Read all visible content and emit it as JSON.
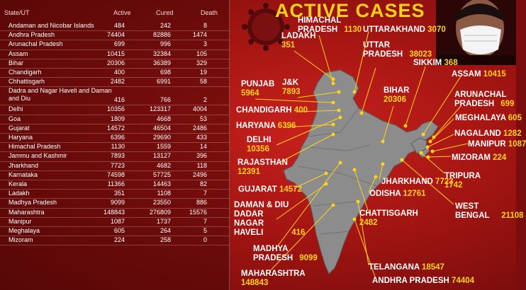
{
  "title": "ACTIVE CASES",
  "table": {
    "headers": {
      "state": "State/UT",
      "active": "Active",
      "cured": "Cured",
      "death": "Death"
    },
    "rows": [
      {
        "state": "Andaman and Nicobar Islands",
        "active": "484",
        "cured": "242",
        "death": "8"
      },
      {
        "state": "Andhra Pradesh",
        "active": "74404",
        "cured": "82886",
        "death": "1474"
      },
      {
        "state": "Arunachal Pradesh",
        "active": "699",
        "cured": "996",
        "death": "3"
      },
      {
        "state": "Assam",
        "active": "10415",
        "cured": "32384",
        "death": "105"
      },
      {
        "state": "Bihar",
        "active": "20306",
        "cured": "36389",
        "death": "329"
      },
      {
        "state": "Chandigarh",
        "active": "400",
        "cured": "698",
        "death": "19"
      },
      {
        "state": "Chhattisgarh",
        "active": "2482",
        "cured": "6991",
        "death": "58"
      },
      {
        "state": "Dadra and Nagar Haveli and Daman and Diu",
        "active": "416",
        "cured": "766",
        "death": "2"
      },
      {
        "state": "Delhi",
        "active": "10356",
        "cured": "123317",
        "death": "4004"
      },
      {
        "state": "Goa",
        "active": "1809",
        "cured": "4668",
        "death": "53"
      },
      {
        "state": "Gujarat",
        "active": "14572",
        "cured": "46504",
        "death": "2486"
      },
      {
        "state": "Haryana",
        "active": "6396",
        "cured": "29690",
        "death": "433"
      },
      {
        "state": "Himachal Pradesh",
        "active": "1130",
        "cured": "1559",
        "death": "14"
      },
      {
        "state": "Jammu and Kashmir",
        "active": "7893",
        "cured": "13127",
        "death": "396"
      },
      {
        "state": "Jharkhand",
        "active": "7723",
        "cured": "4682",
        "death": "118"
      },
      {
        "state": "Karnataka",
        "active": "74598",
        "cured": "57725",
        "death": "2496"
      },
      {
        "state": "Kerala",
        "active": "11366",
        "cured": "14463",
        "death": "82"
      },
      {
        "state": "Ladakh",
        "active": "351",
        "cured": "1108",
        "death": "7"
      },
      {
        "state": "Madhya Pradesh",
        "active": "9099",
        "cured": "23550",
        "death": "886"
      },
      {
        "state": "Maharashtra",
        "active": "148843",
        "cured": "276809",
        "death": "15576"
      },
      {
        "state": "Manipur",
        "active": "1087",
        "cured": "1737",
        "death": "7"
      },
      {
        "state": "Meghalaya",
        "active": "605",
        "cured": "264",
        "death": "5"
      },
      {
        "state": "Mizoram",
        "active": "224",
        "cured": "258",
        "death": "0"
      }
    ]
  },
  "map_labels": [
    {
      "name": "HIMACHAL PRADESH",
      "value": "1130"
    },
    {
      "name": "UTTARAKHAND",
      "value": "3070"
    },
    {
      "name": "LADAKH",
      "value": "351"
    },
    {
      "name": "UTTAR PRADESH",
      "value": "38023"
    },
    {
      "name": "SIKKIM",
      "value": "368"
    },
    {
      "name": "ASSAM",
      "value": "10415"
    },
    {
      "name": "PUNJAB",
      "value": "5964"
    },
    {
      "name": "J&K",
      "value": "7893"
    },
    {
      "name": "BIHAR",
      "value": "20306"
    },
    {
      "name": "ARUNACHAL PRADESH",
      "value": "699"
    },
    {
      "name": "CHANDIGARH",
      "value": "400"
    },
    {
      "name": "MEGHALAYA",
      "value": "605"
    },
    {
      "name": "HARYANA",
      "value": "6396"
    },
    {
      "name": "NAGALAND",
      "value": "1282"
    },
    {
      "name": "DELHI",
      "value": "10356"
    },
    {
      "name": "MANIPUR",
      "value": "1087"
    },
    {
      "name": "MIZORAM",
      "value": "224"
    },
    {
      "name": "RAJASTHAN",
      "value": "12391"
    },
    {
      "name": "TRIPURA",
      "value": "1742"
    },
    {
      "name": "JHARKHAND",
      "value": "7723"
    },
    {
      "name": "GUJARAT",
      "value": "14572"
    },
    {
      "name": "ODISHA",
      "value": "12761"
    },
    {
      "name": "WEST BENGAL",
      "value": "21108"
    },
    {
      "name": "DAMAN & DIU DADAR NAGAR HAVELI",
      "value": "416"
    },
    {
      "name": "CHATTISGARH",
      "value": "2482"
    },
    {
      "name": "MADHYA PRADESH",
      "value": "9099"
    },
    {
      "name": "TELANGANA",
      "value": "18547"
    },
    {
      "name": "MAHARASHTRA",
      "value": "148843"
    },
    {
      "name": "ANDHRA PRADESH",
      "value": "74404"
    }
  ],
  "colors": {
    "background": "#a31512",
    "accent": "#ffd21a",
    "text": "#ffffff",
    "map": "#8c8c8c"
  }
}
